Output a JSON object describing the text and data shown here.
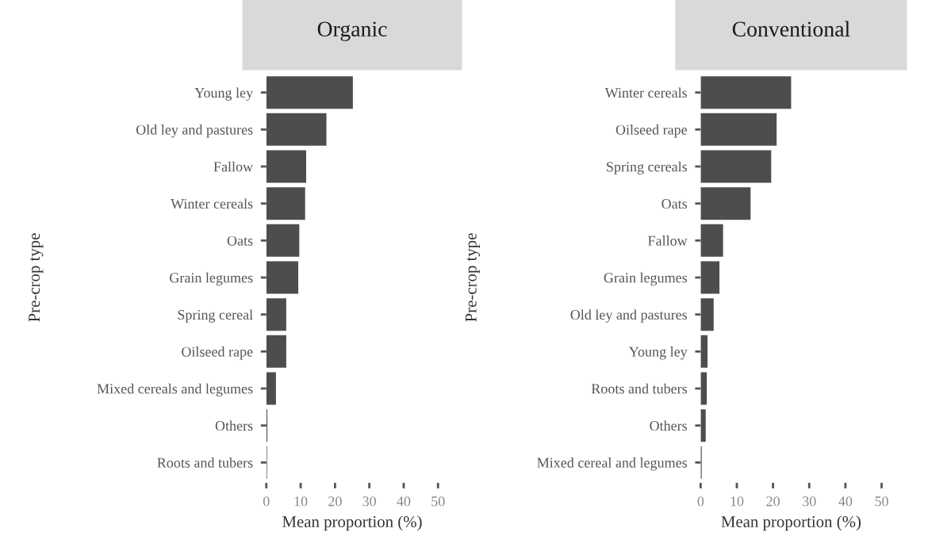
{
  "chart_data": [
    {
      "type": "bar",
      "orientation": "horizontal",
      "title": "Organic",
      "xlabel": "Mean proportion (%)",
      "ylabel": "Pre-crop type",
      "categories": [
        "Young ley",
        "Old ley and pastures",
        "Fallow",
        "Winter cereals",
        "Oats",
        "Grain legumes",
        "Spring cereal",
        "Oilseed rape",
        "Mixed cereals and legumes",
        "Others",
        "Roots and tubers"
      ],
      "values": [
        25.2,
        17.5,
        11.6,
        11.3,
        9.6,
        9.3,
        5.8,
        5.8,
        2.8,
        0.3,
        0.2
      ],
      "color": "#4d4d4d",
      "xlim": [
        0,
        50
      ],
      "xticks": [
        0,
        10,
        20,
        30,
        40,
        50
      ],
      "grid": false,
      "legend": false
    },
    {
      "type": "bar",
      "orientation": "horizontal",
      "title": "Conventional",
      "xlabel": "Mean proportion (%)",
      "ylabel": "Pre-crop type",
      "categories": [
        "Winter cereals",
        "Oilseed rape",
        "Spring cereals",
        "Oats",
        "Fallow",
        "Grain legumes",
        "Old ley and pastures",
        "Young ley",
        "Roots and tubers",
        "Others",
        "Mixed cereal and legumes"
      ],
      "values": [
        25.0,
        21.0,
        19.5,
        13.8,
        6.2,
        5.2,
        3.6,
        1.9,
        1.7,
        1.4,
        0.3
      ],
      "color": "#4d4d4d",
      "xlim": [
        0,
        50
      ],
      "xticks": [
        0,
        10,
        20,
        30,
        40,
        50
      ],
      "grid": false,
      "legend": false
    }
  ]
}
